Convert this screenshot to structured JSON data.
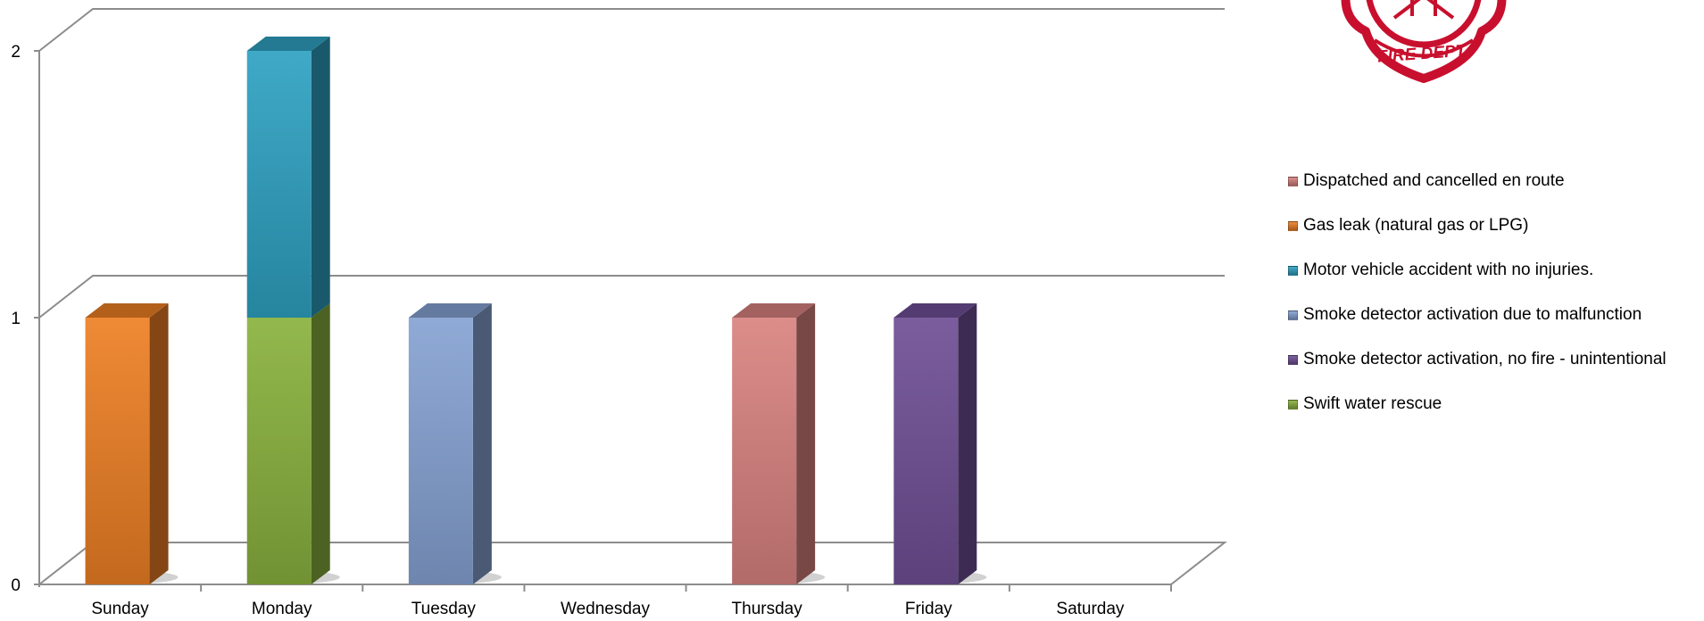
{
  "chart_data": {
    "type": "bar",
    "stacked": true,
    "three_d": true,
    "categories": [
      "Sunday",
      "Monday",
      "Tuesday",
      "Wednesday",
      "Thursday",
      "Friday",
      "Saturday"
    ],
    "ylim": [
      0,
      2
    ],
    "yticks": [
      "0",
      "1",
      "2"
    ],
    "grid": true,
    "legend_position": "right",
    "series": [
      {
        "name": "Dispatched and cancelled en route",
        "color": "#d98380",
        "values": [
          0,
          0,
          0,
          0,
          1,
          0,
          0
        ]
      },
      {
        "name": "Gas leak (natural gas or LPG)",
        "color": "#ee8024",
        "values": [
          1,
          0,
          0,
          0,
          0,
          0,
          0
        ]
      },
      {
        "name": "Motor vehicle accident with no injuries.",
        "color": "#2ea2c2",
        "values": [
          0,
          1,
          0,
          0,
          0,
          0,
          0
        ]
      },
      {
        "name": "Smoke detector activation due to malfunction",
        "color": "#86a3d4",
        "values": [
          0,
          0,
          1,
          0,
          0,
          0,
          0
        ]
      },
      {
        "name": "Smoke detector activation, no fire - unintentional",
        "color": "#704f96",
        "values": [
          0,
          0,
          0,
          0,
          0,
          1,
          0
        ]
      },
      {
        "name": "Swift water rescue",
        "color": "#8ab23e",
        "values": [
          0,
          1,
          0,
          0,
          0,
          0,
          0
        ]
      }
    ],
    "stack_order": [
      "Swift water rescue",
      "Gas leak (natural gas or LPG)",
      "Smoke detector activation due to malfunction",
      "Dispatched and cancelled en route",
      "Smoke detector activation, no fire - unintentional",
      "Motor vehicle accident with no injuries."
    ]
  },
  "logo": {
    "text": "FIRE DEPT.",
    "color": "#c8102e"
  }
}
